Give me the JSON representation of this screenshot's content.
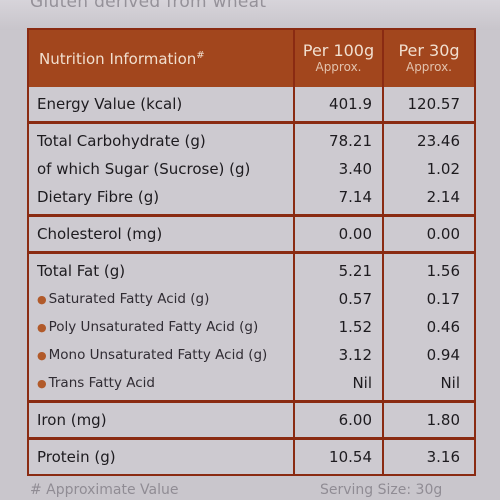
{
  "background": {
    "top_text": "Gluten derived from wheat",
    "bottom_text_left": "# Approximate Value",
    "bottom_text_right": "Serving Size: 30g"
  },
  "table": {
    "header": {
      "title": "Nutrition Information",
      "title_mark": "#",
      "col1_main": "Per 100g",
      "col1_sub": "Approx.",
      "col2_main": "Per 30g",
      "col2_sub": "Approx."
    },
    "energy": {
      "label": "Energy Value (kcal)",
      "v100": "401.9",
      "v30": "120.57"
    },
    "carbs": {
      "rows": [
        {
          "label": "Total Carbohydrate (g)",
          "v100": "78.21",
          "v30": "23.46"
        },
        {
          "label": "of which Sugar (Sucrose) (g)",
          "v100": "3.40",
          "v30": "1.02"
        },
        {
          "label": "Dietary Fibre (g)",
          "v100": "7.14",
          "v30": "2.14"
        }
      ]
    },
    "cholesterol": {
      "label": "Cholesterol (mg)",
      "v100": "0.00",
      "v30": "0.00"
    },
    "fat": {
      "rows": [
        {
          "label": "Total Fat (g)",
          "v100": "5.21",
          "v30": "1.56"
        },
        {
          "label": "Saturated Fatty Acid (g)",
          "v100": "0.57",
          "v30": "0.17"
        },
        {
          "label": "Poly Unsaturated Fatty Acid (g)",
          "v100": "1.52",
          "v30": "0.46"
        },
        {
          "label": "Mono Unsaturated Fatty Acid (g)",
          "v100": "3.12",
          "v30": "0.94"
        },
        {
          "label": "Trans Fatty Acid",
          "v100": "Nil",
          "v30": "Nil"
        }
      ]
    },
    "iron": {
      "label": "Iron (mg)",
      "v100": "6.00",
      "v30": "1.80"
    },
    "protein": {
      "label": "Protein (g)",
      "v100": "10.54",
      "v30": "3.16"
    }
  },
  "colors": {
    "header_bg": "#a2461d",
    "border": "#8a2b12",
    "table_bg": "#cdcad0"
  }
}
